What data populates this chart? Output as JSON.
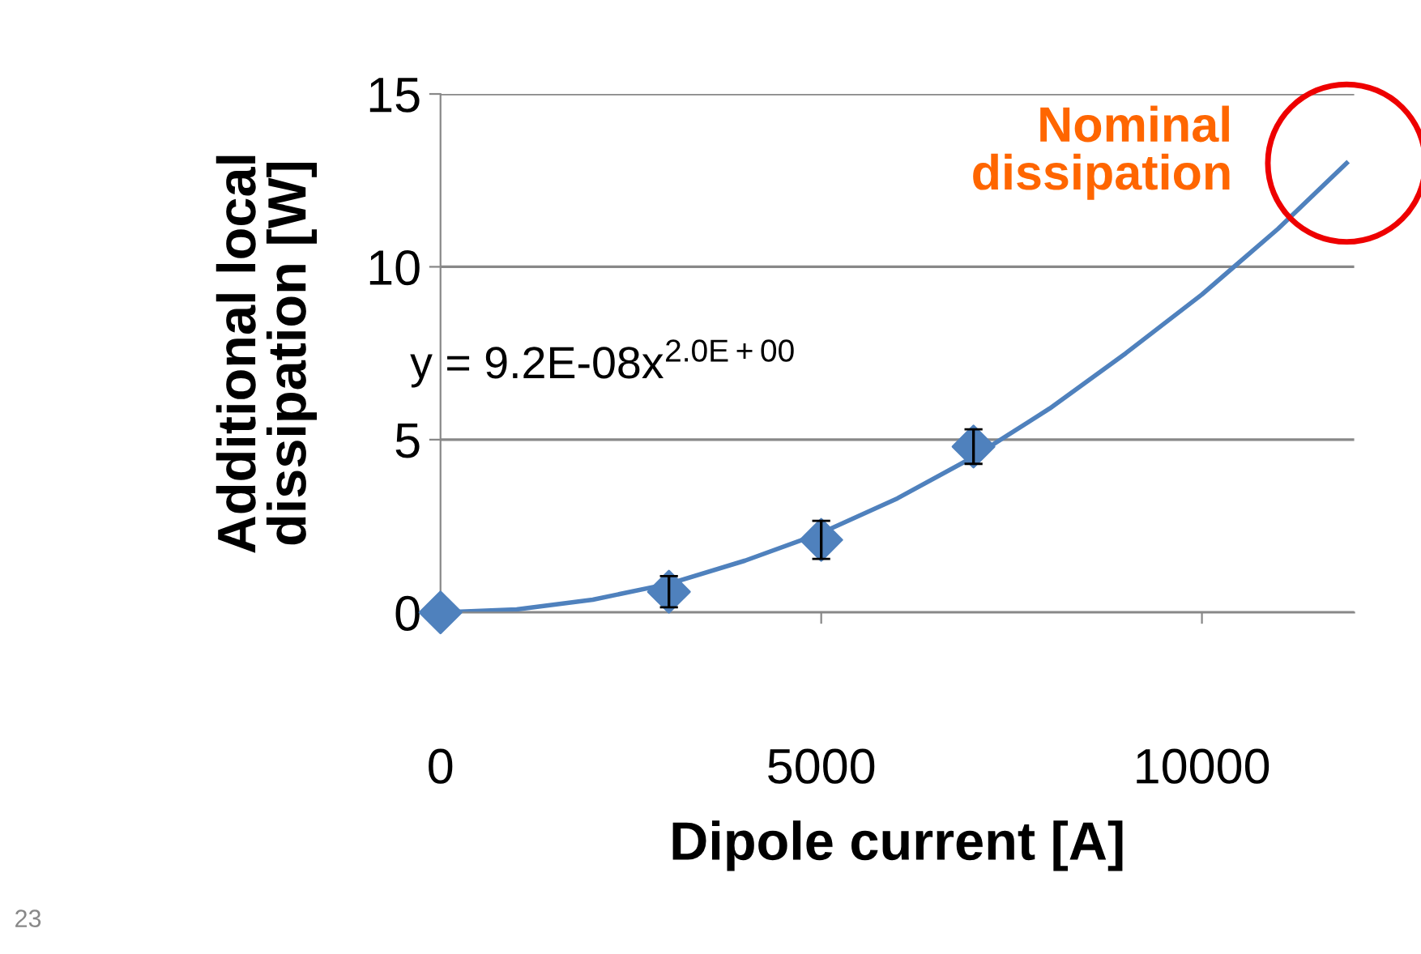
{
  "chart_data": {
    "type": "scatter",
    "xlabel": "Dipole current [A]",
    "ylabel": "Additional local\ndissipation [W]",
    "xlim": [
      0,
      12000
    ],
    "xticks": [
      0,
      5000,
      10000
    ],
    "ylim": [
      0,
      15
    ],
    "yticks": [
      0,
      5,
      10,
      15
    ],
    "grid": "y",
    "series": [
      {
        "marker": "diamond",
        "color": "#4f81bd",
        "x": [
          0,
          3000,
          5000,
          7000
        ],
        "values": [
          0,
          0.6,
          2.1,
          4.8
        ],
        "errors": [
          null,
          0.45,
          0.55,
          0.5
        ]
      },
      {
        "type": "line",
        "marker": "none",
        "color": "#4f81bd",
        "line_style": "solid",
        "x": [
          0,
          1000,
          2000,
          3000,
          4000,
          5000,
          6000,
          7000,
          8000,
          9000,
          10000,
          11000,
          11900
        ],
        "values": [
          0,
          0.09,
          0.37,
          0.83,
          1.5,
          2.3,
          3.3,
          4.5,
          5.9,
          7.5,
          9.2,
          11.1,
          13.0
        ]
      }
    ],
    "annotations": [
      {
        "text": "Nominal\ndissipation",
        "x": 11900,
        "y": 13.0
      },
      "y = 9.2E-08x$^{2.0E+00}$",
      "23"
    ]
  }
}
